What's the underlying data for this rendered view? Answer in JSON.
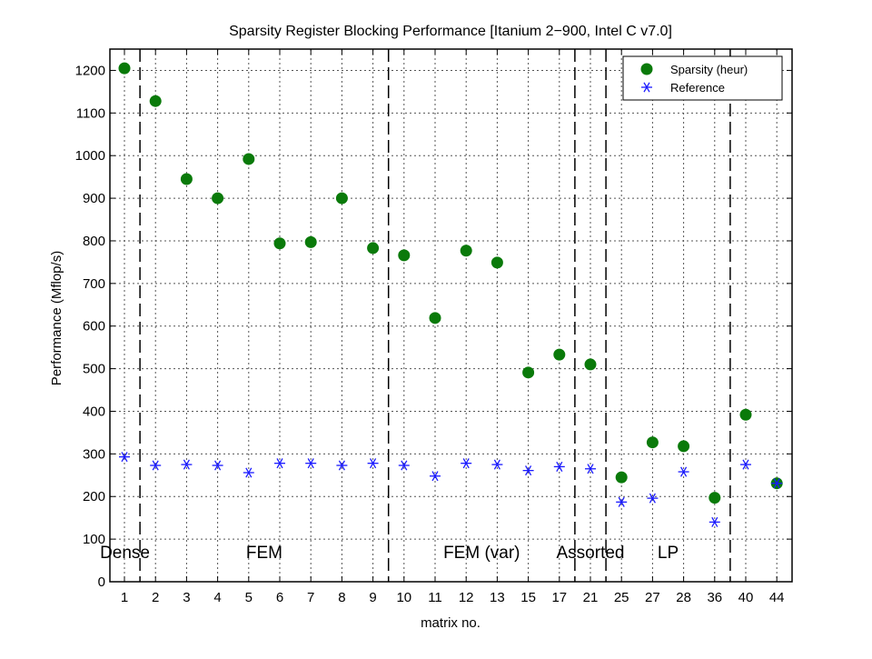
{
  "chart_data": {
    "type": "scatter",
    "title": "Sparsity Register Blocking Performance [Itanium 2−900, Intel C v7.0]",
    "xlabel": "matrix no.",
    "ylabel": "Performance (Mflop/s)",
    "categories": [
      "1",
      "2",
      "3",
      "4",
      "5",
      "6",
      "7",
      "8",
      "9",
      "10",
      "11",
      "12",
      "13",
      "15",
      "17",
      "21",
      "25",
      "27",
      "28",
      "36",
      "40",
      "44"
    ],
    "ylim": [
      0,
      1250
    ],
    "yticks": [
      0,
      100,
      200,
      300,
      400,
      500,
      600,
      700,
      800,
      900,
      1000,
      1100,
      1200
    ],
    "grid": true,
    "legend_position": "top-right",
    "series": [
      {
        "name": "Sparsity (heur)",
        "marker": "filled-circle",
        "color": "#0a7a0a",
        "values": [
          1205,
          1128,
          945,
          900,
          992,
          794,
          797,
          900,
          783,
          766,
          619,
          777,
          749,
          491,
          533,
          510,
          245,
          327,
          318,
          197,
          392,
          231
        ]
      },
      {
        "name": "Reference",
        "marker": "asterisk",
        "color": "#1a1aff",
        "values": [
          293,
          273,
          275,
          273,
          256,
          278,
          278,
          273,
          278,
          273,
          248,
          278,
          275,
          261,
          270,
          265,
          187,
          196,
          258,
          140,
          275,
          231
        ]
      }
    ],
    "separators_after_index": [
      0,
      8,
      14,
      15,
      19
    ],
    "regions": [
      {
        "label": "Dense"
      },
      {
        "label": "FEM"
      },
      {
        "label": "FEM (var)"
      },
      {
        "label": "Assorted"
      },
      {
        "label": "LP"
      }
    ]
  }
}
